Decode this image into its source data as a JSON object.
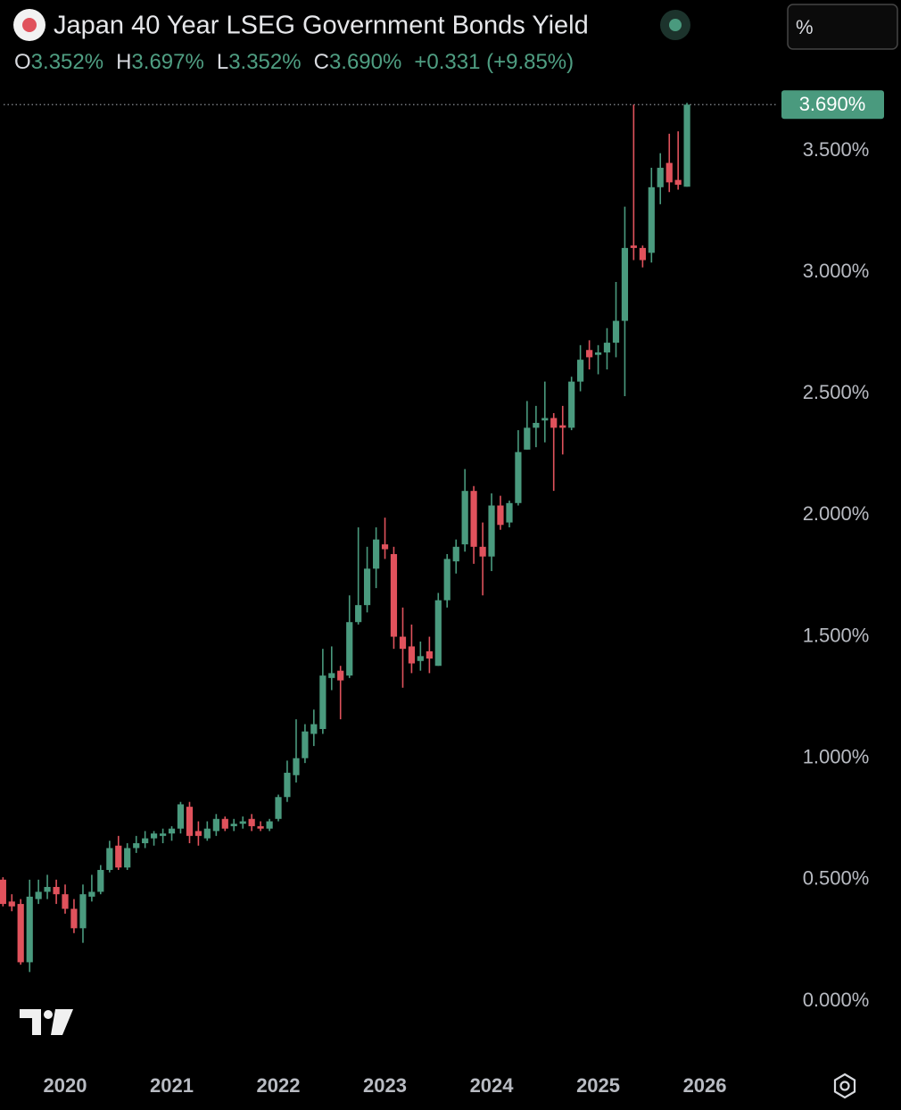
{
  "chart_data": {
    "type": "candlestick",
    "title": "Japan 40 Year LSEG Government Bonds Yield",
    "ohlc_legend": [
      {
        "key": "O",
        "text": "3.352%"
      },
      {
        "key": "H",
        "text": "3.697%"
      },
      {
        "key": "L",
        "text": "3.352%"
      },
      {
        "key": "C",
        "text": "3.690%"
      }
    ],
    "change": "+0.331 (+9.85%)",
    "unit_button": "%",
    "last_price": {
      "value": 3.69,
      "label": "3.690%"
    },
    "up_color": "#4a9a7e",
    "down_color": "#e0525c",
    "grid": false,
    "xlim": [
      2019.389,
      2026.669
    ],
    "xticks": [
      2020,
      2021,
      2022,
      2023,
      2024,
      2025,
      2026
    ],
    "ylim": [
      -0.213,
      3.79
    ],
    "yticks": [
      {
        "value": 0,
        "label": "0.000%"
      },
      {
        "value": 0.5,
        "label": "0.500%"
      },
      {
        "value": 1,
        "label": "1.000%"
      },
      {
        "value": 1.5,
        "label": "1.500%"
      },
      {
        "value": 2,
        "label": "2.000%"
      },
      {
        "value": 2.5,
        "label": "2.500%"
      },
      {
        "value": 3,
        "label": "3.000%"
      },
      {
        "value": 3.5,
        "label": "3.500%"
      }
    ],
    "x": [
      2019.417,
      2019.5,
      2019.583,
      2019.667,
      2019.75,
      2019.833,
      2019.917,
      2020.0,
      2020.083,
      2020.167,
      2020.25,
      2020.333,
      2020.417,
      2020.5,
      2020.583,
      2020.667,
      2020.75,
      2020.833,
      2020.917,
      2021.0,
      2021.083,
      2021.167,
      2021.25,
      2021.333,
      2021.417,
      2021.5,
      2021.583,
      2021.667,
      2021.75,
      2021.833,
      2021.917,
      2022.0,
      2022.083,
      2022.167,
      2022.25,
      2022.333,
      2022.417,
      2022.5,
      2022.583,
      2022.667,
      2022.75,
      2022.833,
      2022.917,
      2023.0,
      2023.083,
      2023.167,
      2023.25,
      2023.333,
      2023.417,
      2023.5,
      2023.583,
      2023.667,
      2023.75,
      2023.833,
      2023.917,
      2024.0,
      2024.083,
      2024.167,
      2024.25,
      2024.333,
      2024.417,
      2024.5,
      2024.583,
      2024.667,
      2024.75,
      2024.833,
      2024.917,
      2025.0,
      2025.083,
      2025.167,
      2025.25,
      2025.333,
      2025.417,
      2025.5,
      2025.583,
      2025.667,
      2025.75,
      2025.833
    ],
    "open": [
      0.5,
      0.41,
      0.4,
      0.16,
      0.42,
      0.45,
      0.47,
      0.44,
      0.38,
      0.3,
      0.43,
      0.45,
      0.54,
      0.64,
      0.55,
      0.63,
      0.65,
      0.67,
      0.68,
      0.69,
      0.71,
      0.8,
      0.7,
      0.67,
      0.7,
      0.75,
      0.72,
      0.73,
      0.75,
      0.72,
      0.71,
      0.75,
      0.84,
      0.93,
      1.0,
      1.1,
      1.12,
      1.33,
      1.36,
      1.34,
      1.56,
      1.63,
      1.78,
      1.88,
      1.84,
      1.5,
      1.46,
      1.4,
      1.44,
      1.38,
      1.65,
      1.81,
      1.88,
      2.1,
      1.87,
      1.83,
      2.04,
      1.97,
      2.05,
      2.27,
      2.36,
      2.39,
      2.4,
      2.37,
      2.36,
      2.55,
      2.68,
      2.66,
      2.67,
      2.71,
      2.8,
      3.11,
      3.1,
      3.08,
      3.35,
      3.45,
      3.38,
      3.352
    ],
    "high": [
      0.51,
      0.44,
      0.42,
      0.5,
      0.5,
      0.52,
      0.5,
      0.48,
      0.42,
      0.48,
      0.52,
      0.56,
      0.66,
      0.68,
      0.65,
      0.68,
      0.7,
      0.7,
      0.71,
      0.72,
      0.82,
      0.82,
      0.74,
      0.74,
      0.77,
      0.76,
      0.75,
      0.76,
      0.77,
      0.74,
      0.75,
      0.85,
      0.99,
      1.16,
      1.14,
      1.2,
      1.45,
      1.46,
      1.38,
      1.67,
      1.95,
      1.87,
      1.95,
      1.99,
      1.87,
      1.62,
      1.55,
      1.48,
      1.5,
      1.68,
      1.84,
      1.9,
      2.19,
      2.12,
      1.97,
      2.09,
      2.08,
      2.06,
      2.35,
      2.47,
      2.45,
      2.55,
      2.42,
      2.45,
      2.57,
      2.7,
      2.72,
      2.7,
      2.77,
      2.96,
      3.27,
      3.69,
      3.11,
      3.43,
      3.49,
      3.57,
      3.58,
      3.697
    ],
    "low": [
      0.39,
      0.37,
      0.15,
      0.12,
      0.4,
      0.42,
      0.4,
      0.36,
      0.28,
      0.24,
      0.41,
      0.44,
      0.53,
      0.54,
      0.54,
      0.61,
      0.63,
      0.64,
      0.65,
      0.66,
      0.69,
      0.65,
      0.64,
      0.66,
      0.68,
      0.7,
      0.7,
      0.71,
      0.7,
      0.7,
      0.7,
      0.74,
      0.82,
      0.9,
      0.98,
      1.05,
      1.1,
      1.28,
      1.16,
      1.33,
      1.55,
      1.6,
      1.7,
      1.82,
      1.45,
      1.29,
      1.35,
      1.36,
      1.35,
      1.38,
      1.62,
      1.76,
      1.85,
      1.8,
      1.67,
      1.77,
      1.94,
      1.95,
      2.04,
      2.27,
      2.28,
      2.3,
      2.1,
      2.25,
      2.35,
      2.51,
      2.6,
      2.58,
      2.6,
      2.65,
      2.49,
      3.05,
      3.02,
      3.04,
      3.28,
      3.33,
      3.34,
      3.352
    ],
    "close": [
      0.4,
      0.39,
      0.16,
      0.43,
      0.45,
      0.47,
      0.44,
      0.38,
      0.3,
      0.44,
      0.45,
      0.54,
      0.63,
      0.55,
      0.63,
      0.65,
      0.67,
      0.69,
      0.69,
      0.71,
      0.81,
      0.68,
      0.68,
      0.71,
      0.75,
      0.71,
      0.73,
      0.74,
      0.72,
      0.71,
      0.74,
      0.84,
      0.94,
      1.0,
      1.11,
      1.14,
      1.34,
      1.35,
      1.32,
      1.56,
      1.63,
      1.78,
      1.9,
      1.86,
      1.5,
      1.45,
      1.39,
      1.42,
      1.41,
      1.65,
      1.82,
      1.87,
      2.1,
      1.87,
      1.83,
      2.04,
      1.96,
      2.05,
      2.26,
      2.36,
      2.38,
      2.4,
      2.36,
      2.36,
      2.55,
      2.64,
      2.65,
      2.67,
      2.71,
      2.8,
      3.1,
      3.1,
      3.05,
      3.35,
      3.43,
      3.37,
      3.36,
      3.69
    ]
  }
}
